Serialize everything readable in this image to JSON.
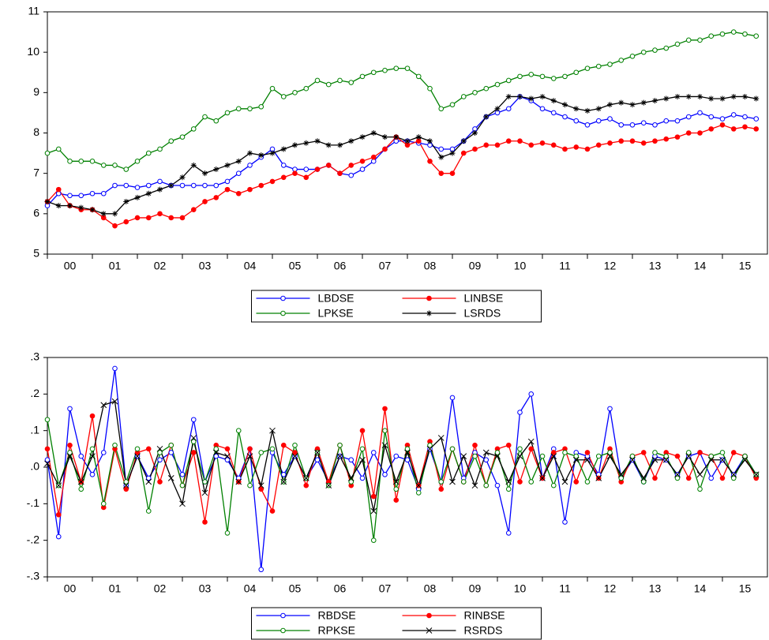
{
  "chart_data": [
    {
      "type": "line",
      "legend": "bottom",
      "x": [
        2000,
        2000.25,
        2000.5,
        2000.75,
        2001,
        2001.25,
        2001.5,
        2001.75,
        2002,
        2002.25,
        2002.5,
        2002.75,
        2003,
        2003.25,
        2003.5,
        2003.75,
        2004,
        2004.25,
        2004.5,
        2004.75,
        2005,
        2005.25,
        2005.5,
        2005.75,
        2006,
        2006.25,
        2006.5,
        2006.75,
        2007,
        2007.25,
        2007.5,
        2007.75,
        2008,
        2008.25,
        2008.5,
        2008.75,
        2009,
        2009.25,
        2009.5,
        2009.75,
        2010,
        2010.25,
        2010.5,
        2010.75,
        2011,
        2011.25,
        2011.5,
        2011.75,
        2012,
        2012.25,
        2012.5,
        2012.75,
        2013,
        2013.25,
        2013.5,
        2013.75,
        2014,
        2014.25,
        2014.5,
        2014.75,
        2015,
        2015.25,
        2015.5,
        2015.75
      ],
      "xlim": [
        2000,
        2016
      ],
      "xticks": [
        {
          "value": 2000,
          "label": "00"
        },
        {
          "value": 2001,
          "label": "01"
        },
        {
          "value": 2002,
          "label": "02"
        },
        {
          "value": 2003,
          "label": "03"
        },
        {
          "value": 2004,
          "label": "04"
        },
        {
          "value": 2005,
          "label": "05"
        },
        {
          "value": 2006,
          "label": "06"
        },
        {
          "value": 2007,
          "label": "07"
        },
        {
          "value": 2008,
          "label": "08"
        },
        {
          "value": 2009,
          "label": "09"
        },
        {
          "value": 2010,
          "label": "10"
        },
        {
          "value": 2011,
          "label": "11"
        },
        {
          "value": 2012,
          "label": "12"
        },
        {
          "value": 2013,
          "label": "13"
        },
        {
          "value": 2014,
          "label": "14"
        },
        {
          "value": 2015,
          "label": "15"
        }
      ],
      "ylim": [
        5,
        11
      ],
      "yticks": [
        5,
        6,
        7,
        8,
        9,
        10,
        11
      ],
      "series": [
        {
          "name": "LBDSE",
          "color": "#0000ff",
          "marker": "circle-open",
          "values": [
            6.2,
            6.5,
            6.45,
            6.45,
            6.5,
            6.5,
            6.7,
            6.7,
            6.65,
            6.7,
            6.8,
            6.7,
            6.7,
            6.7,
            6.7,
            6.7,
            6.8,
            7.0,
            7.2,
            7.4,
            7.6,
            7.2,
            7.1,
            7.1,
            7.1,
            7.2,
            7.0,
            6.95,
            7.1,
            7.3,
            7.6,
            7.8,
            7.8,
            7.75,
            7.7,
            7.6,
            7.6,
            7.8,
            8.1,
            8.4,
            8.5,
            8.6,
            8.9,
            8.8,
            8.6,
            8.5,
            8.4,
            8.3,
            8.2,
            8.3,
            8.35,
            8.2,
            8.2,
            8.25,
            8.2,
            8.3,
            8.3,
            8.4,
            8.5,
            8.4,
            8.35,
            8.45,
            8.4,
            8.35
          ]
        },
        {
          "name": "LINBSE",
          "color": "#ff0000",
          "marker": "circle",
          "values": [
            6.3,
            6.6,
            6.2,
            6.1,
            6.1,
            5.9,
            5.7,
            5.8,
            5.9,
            5.9,
            6.0,
            5.9,
            5.9,
            6.1,
            6.3,
            6.4,
            6.6,
            6.5,
            6.6,
            6.7,
            6.8,
            6.9,
            7.0,
            6.9,
            7.1,
            7.2,
            7.0,
            7.2,
            7.3,
            7.4,
            7.6,
            7.9,
            7.7,
            7.8,
            7.3,
            7.0,
            7.0,
            7.5,
            7.6,
            7.7,
            7.7,
            7.8,
            7.8,
            7.7,
            7.75,
            7.7,
            7.6,
            7.65,
            7.6,
            7.7,
            7.75,
            7.8,
            7.8,
            7.75,
            7.8,
            7.85,
            7.9,
            8.0,
            8.0,
            8.1,
            8.2,
            8.1,
            8.15,
            8.1
          ]
        },
        {
          "name": "LPKSE",
          "color": "#008000",
          "marker": "circle-open",
          "values": [
            7.5,
            7.6,
            7.3,
            7.3,
            7.3,
            7.2,
            7.2,
            7.1,
            7.3,
            7.5,
            7.6,
            7.8,
            7.9,
            8.1,
            8.4,
            8.3,
            8.5,
            8.6,
            8.6,
            8.65,
            9.1,
            8.9,
            9.0,
            9.1,
            9.3,
            9.2,
            9.3,
            9.25,
            9.4,
            9.5,
            9.55,
            9.6,
            9.6,
            9.4,
            9.1,
            8.6,
            8.7,
            8.9,
            9.0,
            9.1,
            9.2,
            9.3,
            9.4,
            9.45,
            9.4,
            9.35,
            9.4,
            9.5,
            9.6,
            9.65,
            9.7,
            9.8,
            9.9,
            10.0,
            10.05,
            10.1,
            10.2,
            10.3,
            10.3,
            10.4,
            10.45,
            10.5,
            10.45,
            10.4
          ]
        },
        {
          "name": "LSRDS",
          "color": "#000000",
          "marker": "star",
          "values": [
            6.3,
            6.2,
            6.2,
            6.15,
            6.1,
            6.0,
            6.0,
            6.3,
            6.4,
            6.5,
            6.6,
            6.7,
            6.9,
            7.2,
            7.0,
            7.1,
            7.2,
            7.3,
            7.5,
            7.45,
            7.5,
            7.6,
            7.7,
            7.75,
            7.8,
            7.7,
            7.7,
            7.8,
            7.9,
            8.0,
            7.9,
            7.9,
            7.8,
            7.9,
            7.8,
            7.4,
            7.5,
            7.8,
            8.0,
            8.4,
            8.6,
            8.9,
            8.9,
            8.85,
            8.9,
            8.8,
            8.7,
            8.6,
            8.55,
            8.6,
            8.7,
            8.75,
            8.7,
            8.75,
            8.8,
            8.85,
            8.9,
            8.9,
            8.9,
            8.85,
            8.85,
            8.9,
            8.9,
            8.85
          ]
        }
      ]
    },
    {
      "type": "line",
      "legend": "bottom",
      "x": [
        2000,
        2000.25,
        2000.5,
        2000.75,
        2001,
        2001.25,
        2001.5,
        2001.75,
        2002,
        2002.25,
        2002.5,
        2002.75,
        2003,
        2003.25,
        2003.5,
        2003.75,
        2004,
        2004.25,
        2004.5,
        2004.75,
        2005,
        2005.25,
        2005.5,
        2005.75,
        2006,
        2006.25,
        2006.5,
        2006.75,
        2007,
        2007.25,
        2007.5,
        2007.75,
        2008,
        2008.25,
        2008.5,
        2008.75,
        2009,
        2009.25,
        2009.5,
        2009.75,
        2010,
        2010.25,
        2010.5,
        2010.75,
        2011,
        2011.25,
        2011.5,
        2011.75,
        2012,
        2012.25,
        2012.5,
        2012.75,
        2013,
        2013.25,
        2013.5,
        2013.75,
        2014,
        2014.25,
        2014.5,
        2014.75,
        2015,
        2015.25,
        2015.5,
        2015.75
      ],
      "xlim": [
        2000,
        2016
      ],
      "xticks": [
        {
          "value": 2000,
          "label": "00"
        },
        {
          "value": 2001,
          "label": "01"
        },
        {
          "value": 2002,
          "label": "02"
        },
        {
          "value": 2003,
          "label": "03"
        },
        {
          "value": 2004,
          "label": "04"
        },
        {
          "value": 2005,
          "label": "05"
        },
        {
          "value": 2006,
          "label": "06"
        },
        {
          "value": 2007,
          "label": "07"
        },
        {
          "value": 2008,
          "label": "08"
        },
        {
          "value": 2009,
          "label": "09"
        },
        {
          "value": 2010,
          "label": "10"
        },
        {
          "value": 2011,
          "label": "11"
        },
        {
          "value": 2012,
          "label": "12"
        },
        {
          "value": 2013,
          "label": "13"
        },
        {
          "value": 2014,
          "label": "14"
        },
        {
          "value": 2015,
          "label": "15"
        }
      ],
      "ylim": [
        -0.3,
        0.3
      ],
      "yticks": [
        {
          "value": -0.3,
          "label": "-.3"
        },
        {
          "value": -0.2,
          "label": "-.2"
        },
        {
          "value": -0.1,
          "label": "-.1"
        },
        {
          "value": 0,
          "label": ".0"
        },
        {
          "value": 0.1,
          "label": ".1"
        },
        {
          "value": 0.2,
          "label": ".2"
        },
        {
          "value": 0.3,
          "label": ".3"
        }
      ],
      "series": [
        {
          "name": "RBDSE",
          "color": "#0000ff",
          "marker": "circle-open",
          "values": [
            0.02,
            -0.19,
            0.16,
            0.03,
            -0.02,
            0.04,
            0.27,
            -0.05,
            0.03,
            -0.03,
            0.02,
            0.04,
            -0.02,
            0.13,
            -0.04,
            0.03,
            0.02,
            -0.03,
            0.05,
            -0.28,
            0.04,
            -0.02,
            0.03,
            -0.03,
            0.02,
            -0.04,
            0.03,
            0.02,
            -0.03,
            0.04,
            -0.02,
            0.03,
            0.02,
            -0.06,
            0.05,
            -0.04,
            0.19,
            -0.03,
            0.04,
            0.02,
            -0.05,
            -0.18,
            0.15,
            0.2,
            -0.03,
            0.05,
            -0.15,
            0.04,
            0.03,
            -0.02,
            0.16,
            -0.03,
            0.02,
            -0.04,
            0.03,
            0.02,
            -0.02,
            0.03,
            0.04,
            -0.03,
            0.02,
            -0.02,
            0.03,
            -0.02
          ]
        },
        {
          "name": "RINBSE",
          "color": "#ff0000",
          "marker": "circle",
          "values": [
            0.05,
            -0.13,
            0.06,
            -0.04,
            0.14,
            -0.11,
            0.05,
            -0.06,
            0.04,
            0.05,
            -0.04,
            0.06,
            -0.05,
            0.04,
            -0.15,
            0.06,
            0.05,
            -0.04,
            0.05,
            -0.06,
            -0.12,
            0.06,
            0.04,
            -0.05,
            0.05,
            -0.04,
            0.06,
            -0.05,
            0.1,
            -0.08,
            0.16,
            -0.09,
            0.06,
            -0.05,
            0.07,
            -0.06,
            0.05,
            -0.04,
            0.06,
            -0.05,
            0.05,
            0.06,
            -0.04,
            0.05,
            -0.03,
            0.04,
            0.05,
            -0.04,
            0.04,
            -0.03,
            0.05,
            -0.04,
            0.03,
            0.04,
            -0.03,
            0.04,
            0.03,
            -0.03,
            0.04,
            0.03,
            -0.03,
            0.04,
            0.03,
            -0.03
          ]
        },
        {
          "name": "RPKSE",
          "color": "#008000",
          "marker": "circle-open",
          "values": [
            0.13,
            -0.05,
            0.04,
            -0.06,
            0.05,
            -0.1,
            0.06,
            -0.04,
            0.05,
            -0.12,
            0.04,
            0.06,
            -0.05,
            0.07,
            -0.04,
            0.05,
            -0.18,
            0.1,
            -0.05,
            0.04,
            0.05,
            -0.04,
            0.06,
            -0.03,
            0.04,
            -0.05,
            0.06,
            -0.04,
            0.05,
            -0.2,
            0.1,
            -0.06,
            0.05,
            -0.07,
            0.06,
            -0.04,
            0.05,
            -0.04,
            0.03,
            -0.05,
            0.04,
            -0.06,
            0.05,
            -0.04,
            0.03,
            -0.05,
            0.04,
            0.03,
            -0.04,
            0.03,
            0.04,
            -0.03,
            0.03,
            -0.04,
            0.04,
            0.03,
            -0.03,
            0.04,
            -0.06,
            0.03,
            0.04,
            -0.03,
            0.03,
            -0.02
          ]
        },
        {
          "name": "RSRDS",
          "color": "#000000",
          "marker": "x",
          "values": [
            0.01,
            -0.05,
            0.03,
            -0.04,
            0.03,
            0.17,
            0.18,
            -0.05,
            0.03,
            -0.04,
            0.05,
            -0.03,
            -0.1,
            0.08,
            -0.07,
            0.04,
            0.03,
            -0.04,
            0.03,
            -0.05,
            0.1,
            -0.04,
            0.03,
            -0.03,
            0.04,
            -0.05,
            0.03,
            -0.03,
            0.02,
            -0.12,
            0.06,
            -0.04,
            0.04,
            -0.05,
            0.05,
            0.08,
            -0.04,
            0.03,
            -0.05,
            0.04,
            0.03,
            -0.04,
            0.03,
            0.07,
            -0.03,
            0.03,
            -0.04,
            0.02,
            0.02,
            -0.03,
            0.03,
            -0.02,
            0.02,
            -0.03,
            0.02,
            0.02,
            -0.02,
            0.03,
            -0.02,
            0.02,
            0.02,
            -0.02,
            0.02,
            -0.02
          ]
        }
      ]
    }
  ]
}
